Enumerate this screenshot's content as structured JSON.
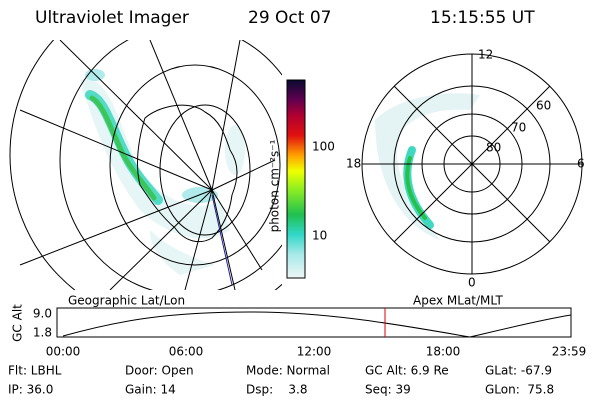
{
  "header": {
    "instrument": "Ultraviolet Imager",
    "date": "29 Oct 07",
    "time": "15:15:55 UT"
  },
  "colorbar": {
    "label": "photon cm⁻²s⁻¹",
    "ticks": [
      "100",
      "10"
    ]
  },
  "left_panel": {
    "caption": "Geographic Lat/Lon"
  },
  "right_panel": {
    "caption": "Apex MLat/MLT",
    "mlt_labels": [
      "12",
      "6",
      "0",
      "18"
    ],
    "mlat_labels": [
      "60",
      "70",
      "80"
    ]
  },
  "altitude_plot": {
    "ylabel": "GC Alt",
    "yticks": [
      "9.0",
      "1.8"
    ],
    "xticks": [
      "00:00",
      "06:00",
      "12:00",
      "18:00",
      "23:59"
    ]
  },
  "info": {
    "rows": [
      [
        "Flt: LBHL",
        "Door: Open",
        "Mode: Normal",
        "GC Alt: 6.9 Re",
        "GLat: -67.9"
      ],
      [
        "IP: 36.0",
        "Gain: 14",
        "Dsp:    3.8",
        "Seq: 39",
        "GLon:  75.8"
      ]
    ]
  }
}
